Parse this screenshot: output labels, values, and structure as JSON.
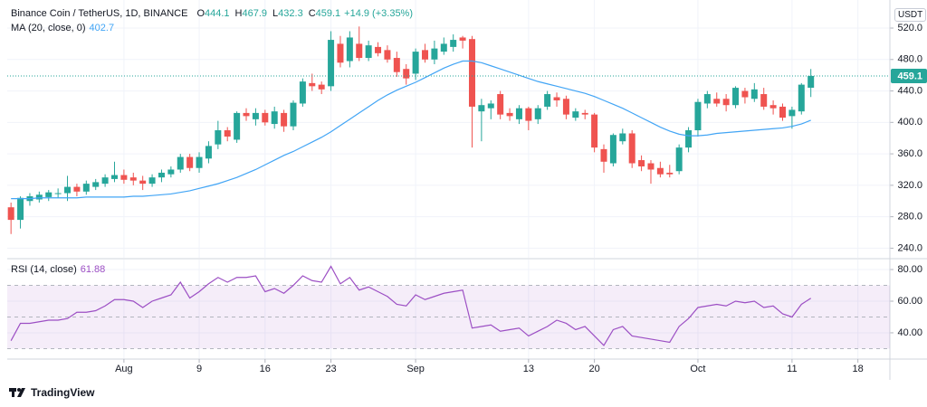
{
  "chart_data": [
    {
      "type": "candlestick",
      "title": "Binance Coin / TetherUS, 1D, BINANCE",
      "ohlc_labels": [
        "O",
        "H",
        "L",
        "C"
      ],
      "change": "+14.9 (+3.35%)",
      "unit": "USDT",
      "up_color": "#26a69a",
      "down_color": "#ef5350",
      "open": [
        292,
        276,
        300,
        302,
        305,
        309,
        310,
        318,
        312,
        318,
        322,
        328,
        333,
        330,
        326,
        322,
        330,
        334,
        340,
        356,
        342,
        354,
        372,
        390,
        378,
        412,
        404,
        412,
        398,
        412,
        395,
        424,
        450,
        448,
        446,
        500,
        478,
        500,
        482,
        496,
        492,
        482,
        468,
        462,
        492,
        480,
        490,
        496,
        508,
        506,
        414,
        418,
        436,
        412,
        404,
        418,
        404,
        420,
        432,
        430,
        406,
        412,
        410,
        366,
        348,
        376,
        386,
        352,
        348,
        342,
        336,
        338,
        368,
        390,
        424,
        430,
        430,
        422,
        440,
        430,
        436,
        422,
        420,
        408,
        414,
        444.1
      ],
      "high": [
        298,
        306,
        310,
        312,
        314,
        316,
        332,
        322,
        326,
        328,
        334,
        350,
        340,
        336,
        332,
        334,
        340,
        344,
        360,
        360,
        362,
        376,
        402,
        394,
        414,
        418,
        418,
        416,
        420,
        416,
        428,
        456,
        462,
        452,
        516,
        510,
        516,
        522,
        504,
        502,
        498,
        490,
        474,
        494,
        500,
        504,
        508,
        512,
        510,
        510,
        430,
        428,
        440,
        418,
        422,
        420,
        422,
        440,
        438,
        434,
        418,
        416,
        412,
        372,
        386,
        392,
        390,
        358,
        352,
        350,
        346,
        372,
        394,
        430,
        440,
        438,
        436,
        446,
        444,
        450,
        444,
        428,
        424,
        420,
        450,
        467.9
      ],
      "low": [
        258,
        265,
        294,
        298,
        300,
        304,
        300,
        306,
        308,
        314,
        318,
        324,
        322,
        320,
        314,
        318,
        324,
        330,
        336,
        338,
        336,
        348,
        366,
        376,
        374,
        402,
        396,
        396,
        392,
        388,
        390,
        420,
        440,
        436,
        440,
        470,
        470,
        478,
        478,
        484,
        476,
        458,
        448,
        454,
        476,
        474,
        486,
        490,
        494,
        368,
        376,
        404,
        404,
        402,
        398,
        390,
        398,
        416,
        420,
        404,
        402,
        404,
        362,
        336,
        344,
        372,
        342,
        338,
        322,
        330,
        330,
        334,
        362,
        382,
        418,
        420,
        414,
        418,
        424,
        426,
        416,
        410,
        402,
        392,
        410,
        432.3
      ],
      "close": [
        276,
        304,
        306,
        308,
        311,
        310,
        318,
        312,
        322,
        324,
        330,
        333,
        327,
        326,
        322,
        330,
        336,
        340,
        356,
        342,
        356,
        370,
        390,
        382,
        412,
        408,
        412,
        400,
        414,
        395,
        425,
        452,
        446,
        442,
        505,
        476,
        508,
        482,
        498,
        488,
        480,
        464,
        456,
        490,
        480,
        494,
        500,
        505,
        504,
        420,
        422,
        424,
        410,
        408,
        418,
        402,
        418,
        436,
        428,
        410,
        414,
        410,
        368,
        350,
        384,
        386,
        348,
        344,
        340,
        334,
        334,
        368,
        390,
        426,
        436,
        424,
        422,
        444,
        432,
        442,
        420,
        418,
        406,
        416,
        448,
        459.1
      ],
      "ma": {
        "name": "MA (20, close, 0)",
        "color": "#42a5f5",
        "values": [
          303,
          303,
          303,
          304,
          304,
          304,
          304,
          304,
          305,
          305,
          305,
          305,
          305,
          306,
          306,
          307,
          308,
          309,
          311,
          313,
          316,
          319,
          322,
          326,
          330,
          335,
          340,
          346,
          352,
          358,
          363,
          369,
          375,
          381,
          388,
          396,
          404,
          412,
          420,
          428,
          435,
          441,
          446,
          451,
          457,
          463,
          469,
          474,
          478,
          478,
          476,
          472,
          468,
          464,
          460,
          456,
          452,
          449,
          446,
          443,
          440,
          437,
          433,
          428,
          423,
          418,
          412,
          406,
          400,
          394,
          389,
          385,
          383,
          383,
          384,
          386,
          387,
          388,
          389,
          390,
          391,
          392,
          393,
          395,
          398,
          402.7
        ]
      },
      "last_price_color": "#26a69a",
      "ylim": [
        227.8,
        555.7
      ],
      "yticks": [
        {
          "value": 240,
          "label": "240.0"
        },
        {
          "value": 280,
          "label": "280.0"
        },
        {
          "value": 320,
          "label": "320.0"
        },
        {
          "value": 360,
          "label": "360.0"
        },
        {
          "value": 400,
          "label": "400.0"
        },
        {
          "value": 440,
          "label": "440.0"
        },
        {
          "value": 480,
          "label": "480.0"
        },
        {
          "value": 520,
          "label": "520.0"
        }
      ],
      "xlim": [
        -0.4,
        93.4
      ],
      "xticks": [
        {
          "value": 12,
          "label": "Aug"
        },
        {
          "value": 20,
          "label": "9"
        },
        {
          "value": 27,
          "label": "16"
        },
        {
          "value": 34,
          "label": "23"
        },
        {
          "value": 43,
          "label": "Sep"
        },
        {
          "value": 55,
          "label": "13"
        },
        {
          "value": 62,
          "label": "20"
        },
        {
          "value": 73,
          "label": "Oct"
        },
        {
          "value": 83,
          "label": "11"
        },
        {
          "value": 90,
          "label": "18"
        }
      ],
      "grid": true
    },
    {
      "type": "line",
      "name": "RSI (14, close)",
      "color": "#9c4fc4",
      "values": [
        35,
        46,
        46,
        47,
        48,
        48,
        49,
        53,
        53,
        54,
        57,
        61,
        61,
        60,
        56,
        60,
        62,
        64,
        72,
        62,
        66,
        71,
        75,
        72,
        75,
        75,
        76,
        66,
        68,
        65,
        70,
        76,
        73,
        72,
        82,
        71,
        75,
        67,
        69,
        66,
        63,
        58,
        57,
        64,
        61,
        63,
        65,
        66,
        67,
        43,
        44,
        45,
        41,
        42,
        43,
        38,
        41,
        44,
        48,
        46,
        42,
        44,
        38,
        32,
        42,
        44,
        38,
        37,
        36,
        35,
        34,
        44,
        49,
        56,
        57,
        58,
        57,
        60,
        59,
        60,
        56,
        57,
        52,
        50,
        58,
        61.88
      ],
      "levels": [
        30,
        50,
        70
      ],
      "band_color": "rgba(156,79,196,0.1)",
      "ylim": [
        23.4,
        86.3
      ],
      "yticks": [
        {
          "value": 40,
          "label": "40.00"
        },
        {
          "value": 60,
          "label": "60.00"
        },
        {
          "value": 80,
          "label": "80.00"
        }
      ],
      "grid": true
    }
  ],
  "brand": "TradingView"
}
